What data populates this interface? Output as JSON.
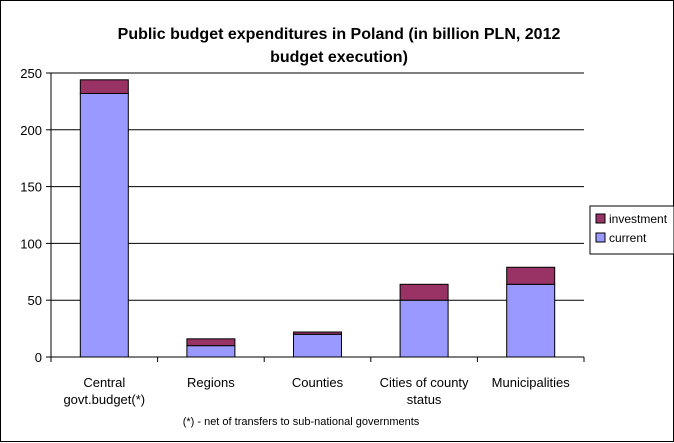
{
  "chart_data": {
    "type": "bar",
    "stacked": true,
    "title_lines": [
      "Public budget expenditures in Poland (in billion PLN, 2012",
      "budget execution)"
    ],
    "categories": [
      [
        "Central",
        "govt.budget(*)"
      ],
      [
        "Regions"
      ],
      [
        "Counties"
      ],
      [
        "Cities of county",
        "status"
      ],
      [
        "Municipalities"
      ]
    ],
    "series": [
      {
        "name": "current",
        "color": "#9999ff",
        "values": [
          232,
          10,
          20,
          50,
          64
        ]
      },
      {
        "name": "investment",
        "color": "#993366",
        "values": [
          12,
          6,
          2,
          14,
          15
        ]
      }
    ],
    "legend_order": [
      "investment",
      "current"
    ],
    "legend_position": "right",
    "ylim": [
      0,
      250
    ],
    "yticks": [
      0,
      50,
      100,
      150,
      200,
      250
    ],
    "grid": true,
    "footnote": "(*) - net of transfers to sub-national governments"
  }
}
